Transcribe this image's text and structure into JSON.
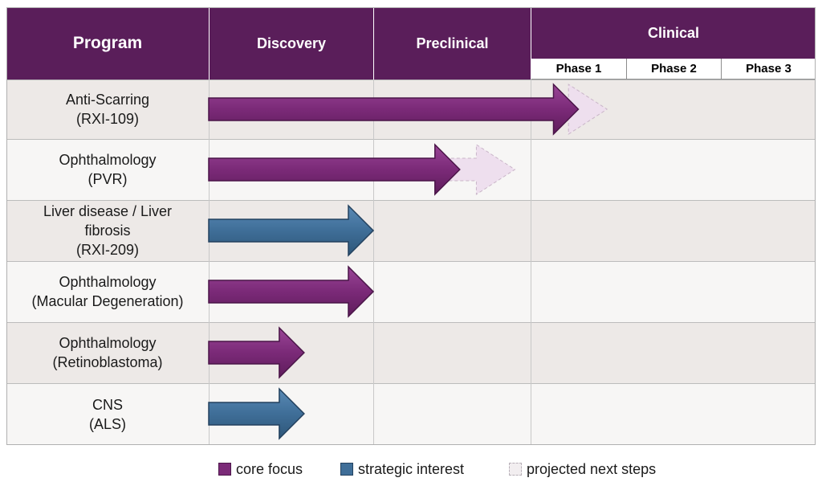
{
  "chart_data": {
    "type": "table",
    "columns": {
      "program": "Program",
      "discovery": "Discovery",
      "preclinical": "Preclinical",
      "clinical": "Clinical",
      "phases": [
        "Phase 1",
        "Phase 2",
        "Phase 3"
      ]
    },
    "stages": [
      "Discovery",
      "Preclinical",
      "Phase 1",
      "Phase 2",
      "Phase 3"
    ],
    "programs": [
      {
        "lines": [
          "Anti-Scarring",
          "(RXI-109)"
        ],
        "category": "core focus",
        "progress": 2.5,
        "projected": 2.8
      },
      {
        "lines": [
          "Ophthalmology",
          "(PVR)"
        ],
        "category": "core focus",
        "progress": 1.55,
        "projected": 1.9
      },
      {
        "lines": [
          "Liver disease / Liver",
          "fibrosis",
          "(RXI-209)"
        ],
        "category": "strategic interest",
        "progress": 1.0,
        "projected": null
      },
      {
        "lines": [
          "Ophthalmology",
          "(Macular Degeneration)"
        ],
        "category": "core focus",
        "progress": 1.0,
        "projected": null
      },
      {
        "lines": [
          "Ophthalmology",
          "(Retinoblastoma)"
        ],
        "category": "core focus",
        "progress": 0.58,
        "projected": null
      },
      {
        "lines": [
          "CNS",
          "(ALS)"
        ],
        "category": "strategic interest",
        "progress": 0.58,
        "projected": null
      }
    ],
    "legend": [
      {
        "label": "core focus",
        "color": "#7b2a78"
      },
      {
        "label": "strategic interest",
        "color": "#3f6e98"
      },
      {
        "label": "projected next steps",
        "color": "#eedfee"
      }
    ],
    "colors": {
      "header": "#5a1e5a",
      "core_focus": "#7b2a78",
      "strategic_interest": "#3f6e98",
      "projected": "#eedfee"
    }
  }
}
